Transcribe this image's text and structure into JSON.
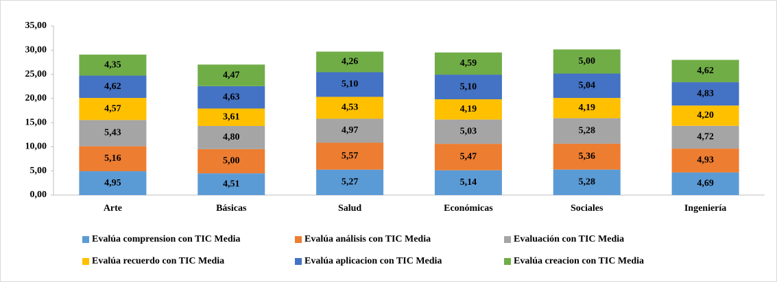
{
  "chart_data": {
    "type": "stacked_bar",
    "categories": [
      "Arte",
      "Básicas",
      "Salud",
      "Económicas",
      "Sociales",
      "Ingeniería"
    ],
    "series": [
      {
        "name": "Evalúa comprension con TIC Media",
        "color": "#5b9bd5",
        "values": [
          4.95,
          4.51,
          5.27,
          5.14,
          5.28,
          4.69
        ],
        "value_labels": [
          "4,95",
          "4,51",
          "5,27",
          "5,14",
          "5,28",
          "4,69"
        ]
      },
      {
        "name": "Evalúa análisis con TIC Media",
        "color": "#ed7d31",
        "values": [
          5.16,
          5.0,
          5.57,
          5.47,
          5.36,
          4.93
        ],
        "value_labels": [
          "5,16",
          "5,00",
          "5,57",
          "5,47",
          "5,36",
          "4,93"
        ]
      },
      {
        "name": "Evaluación con TIC Media",
        "color": "#a5a5a5",
        "values": [
          5.43,
          4.8,
          4.97,
          5.03,
          5.28,
          4.72
        ],
        "value_labels": [
          "5,43",
          "4,80",
          "4,97",
          "5,03",
          "5,28",
          "4,72"
        ]
      },
      {
        "name": "Evalúa recuerdo con TIC Media",
        "color": "#ffc000",
        "values": [
          4.57,
          3.61,
          4.53,
          4.19,
          4.19,
          4.2
        ],
        "value_labels": [
          "4,57",
          "3,61",
          "4,53",
          "4,19",
          "4,19",
          "4,20"
        ]
      },
      {
        "name": "Evalúa aplicacion con TIC Media",
        "color": "#4472c4",
        "values": [
          4.62,
          4.63,
          5.1,
          5.1,
          5.04,
          4.83
        ],
        "value_labels": [
          "4,62",
          "4,63",
          "5,10",
          "5,10",
          "5,04",
          "4,83"
        ]
      },
      {
        "name": "Evalúa creacion con TIC Media",
        "color": "#70ad47",
        "values": [
          4.35,
          4.47,
          4.26,
          4.59,
          5.0,
          4.62
        ],
        "value_labels": [
          "4,35",
          "4,47",
          "4,26",
          "4,59",
          "5,00",
          "4,62"
        ]
      }
    ],
    "ylim": [
      0,
      35
    ],
    "yticks": [
      {
        "value": 0,
        "label": "0,00"
      },
      {
        "value": 5,
        "label": "5,00"
      },
      {
        "value": 10,
        "label": "10,00"
      },
      {
        "value": 15,
        "label": "15,00"
      },
      {
        "value": 20,
        "label": "20,00"
      },
      {
        "value": 25,
        "label": "25,00"
      },
      {
        "value": 30,
        "label": "30,00"
      },
      {
        "value": 35,
        "label": "35,00"
      }
    ],
    "grid": false,
    "legend": "bottom"
  }
}
